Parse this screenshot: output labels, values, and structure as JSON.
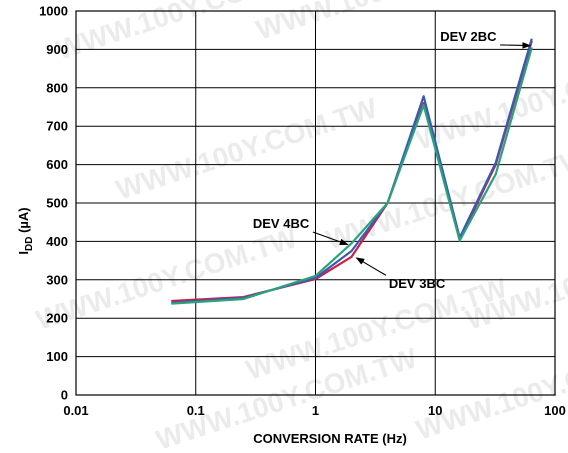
{
  "watermark": "WWW.100Y.COM.TW",
  "chart_data": {
    "type": "line",
    "x_scale": "log",
    "xlim": [
      0.01,
      100
    ],
    "ylim": [
      0,
      1000
    ],
    "grid": true,
    "xlabel": "CONVERSION RATE (Hz)",
    "ylabel_main": "I",
    "ylabel_sub": "DD",
    "ylabel_unit": " (µA)",
    "x_ticks": [
      {
        "value": 0.01,
        "label": "0.01"
      },
      {
        "value": 0.1,
        "label": "0.1"
      },
      {
        "value": 1,
        "label": "1"
      },
      {
        "value": 10,
        "label": "10"
      },
      {
        "value": 100,
        "label": "100"
      }
    ],
    "y_ticks": [
      {
        "value": 0,
        "label": "0"
      },
      {
        "value": 100,
        "label": "100"
      },
      {
        "value": 200,
        "label": "200"
      },
      {
        "value": 300,
        "label": "300"
      },
      {
        "value": 400,
        "label": "400"
      },
      {
        "value": 500,
        "label": "500"
      },
      {
        "value": 600,
        "label": "600"
      },
      {
        "value": 700,
        "label": "700"
      },
      {
        "value": 800,
        "label": "800"
      },
      {
        "value": 900,
        "label": "900"
      },
      {
        "value": 1000,
        "label": "1000"
      }
    ],
    "series": [
      {
        "name": "DEV 3BC",
        "color": "#c8204a",
        "points": [
          [
            0.0625,
            245
          ],
          [
            0.25,
            255
          ],
          [
            1,
            302
          ],
          [
            2,
            360
          ],
          [
            4,
            500
          ],
          [
            8,
            760
          ],
          [
            16,
            405
          ],
          [
            32,
            600
          ],
          [
            64,
            922
          ]
        ]
      },
      {
        "name": "DEV 2BC",
        "color": "#3a5ab5",
        "points": [
          [
            0.0625,
            240
          ],
          [
            0.25,
            253
          ],
          [
            1,
            305
          ],
          [
            2,
            375
          ],
          [
            4,
            500
          ],
          [
            8,
            778
          ],
          [
            16,
            410
          ],
          [
            32,
            605
          ],
          [
            64,
            928
          ]
        ]
      },
      {
        "name": "DEV 4BC",
        "color": "#2aa27a",
        "points": [
          [
            0.0625,
            238
          ],
          [
            0.25,
            250
          ],
          [
            1,
            310
          ],
          [
            2,
            395
          ],
          [
            4,
            500
          ],
          [
            8,
            755
          ],
          [
            16,
            402
          ],
          [
            32,
            575
          ],
          [
            64,
            905
          ]
        ]
      }
    ],
    "annotations": [
      {
        "text": "DEV 2BC",
        "series": "DEV 2BC",
        "label_at": [
          11,
          922
        ],
        "arrow_to": [
          62,
          910
        ]
      },
      {
        "text": "DEV 4BC",
        "series": "DEV 4BC",
        "label_at": [
          0.3,
          435
        ],
        "arrow_to": [
          1.85,
          392
        ]
      },
      {
        "text": "DEV 3BC",
        "series": "DEV 3BC",
        "label_at": [
          4.1,
          278
        ],
        "arrow_to": [
          2.2,
          357
        ]
      }
    ]
  }
}
